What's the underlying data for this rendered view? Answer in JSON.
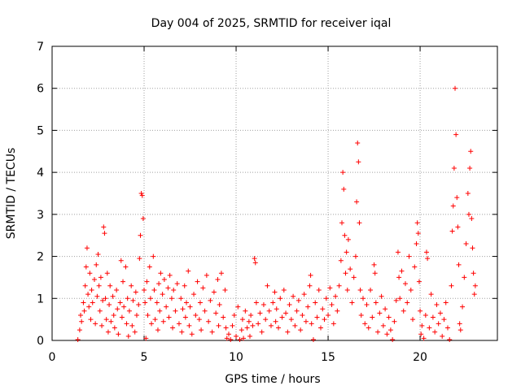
{
  "chart_data": {
    "type": "scatter",
    "title": "Day 004 of 2025, SRMTID for receiver iqal",
    "xlabel": "GPS time / hours",
    "ylabel": "SRMTID / TECUs",
    "xlim": [
      0,
      24.2
    ],
    "ylim": [
      0,
      7
    ],
    "xticks": [
      0,
      5,
      10,
      15,
      20
    ],
    "yticks": [
      0,
      1,
      2,
      3,
      4,
      5,
      6,
      7
    ],
    "grid": true,
    "marker": "+",
    "marker_color": "#ff0000",
    "series": [
      {
        "name": "SRMTID",
        "points": [
          [
            1.4,
            0.02
          ],
          [
            1.5,
            0.25
          ],
          [
            1.55,
            0.6
          ],
          [
            1.6,
            0.45
          ],
          [
            1.7,
            0.9
          ],
          [
            1.75,
            0.7
          ],
          [
            1.8,
            1.3
          ],
          [
            1.85,
            1.75
          ],
          [
            1.9,
            2.2
          ],
          [
            1.95,
            1.1
          ],
          [
            2.0,
            0.8
          ],
          [
            2.05,
            1.6
          ],
          [
            2.1,
            0.5
          ],
          [
            2.15,
            1.2
          ],
          [
            2.2,
            0.9
          ],
          [
            2.3,
            1.45
          ],
          [
            2.35,
            0.4
          ],
          [
            2.4,
            1.8
          ],
          [
            2.45,
            1.05
          ],
          [
            2.5,
            2.05
          ],
          [
            2.55,
            1.3
          ],
          [
            2.6,
            0.7
          ],
          [
            2.65,
            1.5
          ],
          [
            2.7,
            0.35
          ],
          [
            2.75,
            0.95
          ],
          [
            2.8,
            2.7
          ],
          [
            2.85,
            2.55
          ],
          [
            2.9,
            1.0
          ],
          [
            2.95,
            0.5
          ],
          [
            3.0,
            1.6
          ],
          [
            3.05,
            0.2
          ],
          [
            3.1,
            0.85
          ],
          [
            3.15,
            1.3
          ],
          [
            3.2,
            0.45
          ],
          [
            3.3,
            1.05
          ],
          [
            3.35,
            0.6
          ],
          [
            3.4,
            0.3
          ],
          [
            3.5,
            1.2
          ],
          [
            3.55,
            0.75
          ],
          [
            3.6,
            0.15
          ],
          [
            3.7,
            0.9
          ],
          [
            3.75,
            1.9
          ],
          [
            3.8,
            0.55
          ],
          [
            3.85,
            1.4
          ],
          [
            3.9,
            0.8
          ],
          [
            4.0,
            1.75
          ],
          [
            4.05,
            0.4
          ],
          [
            4.1,
            1.0
          ],
          [
            4.15,
            0.1
          ],
          [
            4.2,
            0.7
          ],
          [
            4.3,
            1.3
          ],
          [
            4.35,
            0.35
          ],
          [
            4.4,
            0.95
          ],
          [
            4.5,
            0.2
          ],
          [
            4.55,
            1.15
          ],
          [
            4.6,
            0.6
          ],
          [
            4.7,
            0.85
          ],
          [
            4.75,
            1.95
          ],
          [
            4.8,
            2.5
          ],
          [
            4.85,
            3.5
          ],
          [
            4.9,
            3.45
          ],
          [
            4.95,
            2.9
          ],
          [
            5.0,
            1.2
          ],
          [
            5.05,
            0.9
          ],
          [
            5.1,
            0.05
          ],
          [
            5.15,
            1.4
          ],
          [
            5.2,
            0.6
          ],
          [
            5.3,
            1.75
          ],
          [
            5.35,
            1.0
          ],
          [
            5.4,
            0.4
          ],
          [
            5.5,
            2.0
          ],
          [
            5.55,
            1.2
          ],
          [
            5.6,
            0.5
          ],
          [
            5.7,
            0.9
          ],
          [
            5.75,
            0.25
          ],
          [
            5.8,
            1.35
          ],
          [
            5.85,
            0.7
          ],
          [
            5.9,
            1.6
          ],
          [
            6.0,
            1.1
          ],
          [
            6.05,
            0.45
          ],
          [
            6.1,
            1.45
          ],
          [
            6.2,
            0.8
          ],
          [
            6.3,
            1.25
          ],
          [
            6.35,
            0.55
          ],
          [
            6.4,
            1.55
          ],
          [
            6.5,
            1.0
          ],
          [
            6.55,
            0.3
          ],
          [
            6.6,
            1.2
          ],
          [
            6.7,
            0.7
          ],
          [
            6.8,
            1.35
          ],
          [
            6.9,
            0.4
          ],
          [
            7.0,
            1.0
          ],
          [
            7.05,
            0.2
          ],
          [
            7.1,
            0.75
          ],
          [
            7.2,
            1.3
          ],
          [
            7.25,
            0.55
          ],
          [
            7.3,
            0.9
          ],
          [
            7.4,
            1.65
          ],
          [
            7.45,
            0.35
          ],
          [
            7.5,
            0.8
          ],
          [
            7.6,
            0.15
          ],
          [
            7.7,
            1.1
          ],
          [
            7.8,
            0.6
          ],
          [
            7.9,
            1.4
          ],
          [
            8.0,
            0.5
          ],
          [
            8.05,
            0.9
          ],
          [
            8.1,
            0.25
          ],
          [
            8.2,
            1.25
          ],
          [
            8.3,
            0.7
          ],
          [
            8.4,
            1.55
          ],
          [
            8.5,
            0.45
          ],
          [
            8.6,
            0.95
          ],
          [
            8.7,
            0.2
          ],
          [
            8.8,
            1.15
          ],
          [
            8.9,
            0.65
          ],
          [
            9.0,
            1.45
          ],
          [
            9.05,
            0.35
          ],
          [
            9.1,
            0.85
          ],
          [
            9.2,
            1.6
          ],
          [
            9.3,
            0.55
          ],
          [
            9.4,
            1.2
          ],
          [
            9.45,
            0.3
          ],
          [
            9.5,
            0.05
          ],
          [
            9.6,
            0.15
          ],
          [
            9.7,
            0.02
          ],
          [
            9.8,
            0.35
          ],
          [
            9.9,
            0.6
          ],
          [
            10.0,
            0.1
          ],
          [
            10.1,
            0.8
          ],
          [
            10.2,
            0.02
          ],
          [
            10.3,
            0.25
          ],
          [
            10.35,
            0.5
          ],
          [
            10.4,
            0.05
          ],
          [
            10.5,
            0.7
          ],
          [
            10.6,
            0.3
          ],
          [
            10.7,
            0.45
          ],
          [
            10.75,
            0.1
          ],
          [
            10.8,
            0.6
          ],
          [
            10.9,
            0.35
          ],
          [
            11.0,
            1.95
          ],
          [
            11.05,
            1.85
          ],
          [
            11.1,
            0.9
          ],
          [
            11.2,
            0.4
          ],
          [
            11.3,
            0.65
          ],
          [
            11.4,
            0.2
          ],
          [
            11.5,
            0.85
          ],
          [
            11.6,
            0.5
          ],
          [
            11.7,
            1.3
          ],
          [
            11.8,
            0.7
          ],
          [
            11.9,
            0.35
          ],
          [
            12.0,
            0.9
          ],
          [
            12.1,
            1.15
          ],
          [
            12.15,
            0.45
          ],
          [
            12.2,
            0.75
          ],
          [
            12.3,
            0.3
          ],
          [
            12.4,
            1.0
          ],
          [
            12.5,
            0.55
          ],
          [
            12.6,
            1.2
          ],
          [
            12.7,
            0.65
          ],
          [
            12.8,
            0.2
          ],
          [
            12.9,
            0.85
          ],
          [
            13.0,
            0.5
          ],
          [
            13.1,
            1.05
          ],
          [
            13.2,
            0.35
          ],
          [
            13.3,
            0.7
          ],
          [
            13.4,
            0.95
          ],
          [
            13.5,
            0.25
          ],
          [
            13.6,
            0.6
          ],
          [
            13.7,
            1.1
          ],
          [
            13.8,
            0.45
          ],
          [
            13.9,
            0.8
          ],
          [
            14.0,
            1.3
          ],
          [
            14.05,
            1.55
          ],
          [
            14.1,
            0.4
          ],
          [
            14.2,
            0.02
          ],
          [
            14.3,
            0.9
          ],
          [
            14.4,
            0.55
          ],
          [
            14.5,
            1.2
          ],
          [
            14.6,
            0.3
          ],
          [
            14.7,
            0.75
          ],
          [
            14.8,
            0.5
          ],
          [
            14.9,
            1.0
          ],
          [
            15.0,
            0.6
          ],
          [
            15.1,
            1.25
          ],
          [
            15.2,
            0.85
          ],
          [
            15.3,
            0.4
          ],
          [
            15.4,
            1.05
          ],
          [
            15.5,
            0.7
          ],
          [
            15.6,
            1.3
          ],
          [
            15.7,
            1.9
          ],
          [
            15.75,
            2.8
          ],
          [
            15.8,
            4.0
          ],
          [
            15.85,
            3.6
          ],
          [
            15.9,
            2.5
          ],
          [
            15.95,
            1.6
          ],
          [
            16.0,
            2.1
          ],
          [
            16.05,
            1.2
          ],
          [
            16.1,
            2.4
          ],
          [
            16.2,
            1.7
          ],
          [
            16.3,
            0.9
          ],
          [
            16.4,
            1.5
          ],
          [
            16.5,
            2.0
          ],
          [
            16.55,
            3.3
          ],
          [
            16.6,
            4.7
          ],
          [
            16.65,
            4.25
          ],
          [
            16.7,
            2.8
          ],
          [
            16.75,
            1.2
          ],
          [
            16.8,
            0.6
          ],
          [
            16.9,
            1.0
          ],
          [
            17.0,
            0.4
          ],
          [
            17.1,
            0.85
          ],
          [
            17.2,
            0.3
          ],
          [
            17.3,
            1.2
          ],
          [
            17.4,
            0.55
          ],
          [
            17.5,
            1.8
          ],
          [
            17.55,
            1.6
          ],
          [
            17.6,
            0.9
          ],
          [
            17.7,
            0.2
          ],
          [
            17.8,
            0.65
          ],
          [
            17.9,
            1.05
          ],
          [
            18.0,
            0.35
          ],
          [
            18.1,
            0.75
          ],
          [
            18.2,
            0.15
          ],
          [
            18.3,
            0.55
          ],
          [
            18.4,
            0.25
          ],
          [
            18.5,
            0.02
          ],
          [
            18.6,
            0.45
          ],
          [
            18.7,
            0.95
          ],
          [
            18.8,
            2.1
          ],
          [
            18.85,
            1.5
          ],
          [
            18.9,
            1.0
          ],
          [
            19.0,
            1.65
          ],
          [
            19.1,
            0.7
          ],
          [
            19.2,
            1.35
          ],
          [
            19.3,
            0.9
          ],
          [
            19.4,
            2.0
          ],
          [
            19.5,
            1.2
          ],
          [
            19.6,
            0.5
          ],
          [
            19.7,
            1.75
          ],
          [
            19.8,
            2.3
          ],
          [
            19.85,
            2.8
          ],
          [
            19.9,
            2.55
          ],
          [
            19.95,
            1.4
          ],
          [
            20.0,
            0.7
          ],
          [
            20.05,
            0.15
          ],
          [
            20.1,
            0.35
          ],
          [
            20.2,
            0.05
          ],
          [
            20.3,
            0.6
          ],
          [
            20.35,
            2.1
          ],
          [
            20.4,
            1.95
          ],
          [
            20.5,
            0.3
          ],
          [
            20.6,
            1.1
          ],
          [
            20.7,
            0.55
          ],
          [
            20.8,
            0.2
          ],
          [
            20.9,
            0.85
          ],
          [
            21.0,
            0.4
          ],
          [
            21.1,
            0.65
          ],
          [
            21.2,
            0.1
          ],
          [
            21.3,
            0.5
          ],
          [
            21.4,
            0.9
          ],
          [
            21.5,
            0.3
          ],
          [
            21.6,
            0.02
          ],
          [
            21.7,
            1.3
          ],
          [
            21.75,
            2.6
          ],
          [
            21.8,
            3.2
          ],
          [
            21.85,
            4.1
          ],
          [
            21.9,
            6.0
          ],
          [
            21.95,
            4.9
          ],
          [
            22.0,
            3.4
          ],
          [
            22.05,
            2.7
          ],
          [
            22.1,
            1.8
          ],
          [
            22.15,
            0.4
          ],
          [
            22.2,
            0.25
          ],
          [
            22.3,
            0.8
          ],
          [
            22.4,
            1.5
          ],
          [
            22.5,
            2.3
          ],
          [
            22.6,
            3.5
          ],
          [
            22.65,
            3.0
          ],
          [
            22.7,
            4.1
          ],
          [
            22.75,
            4.5
          ],
          [
            22.8,
            2.9
          ],
          [
            22.85,
            2.2
          ],
          [
            22.9,
            1.6
          ],
          [
            22.95,
            1.1
          ],
          [
            23.0,
            1.3
          ]
        ]
      }
    ]
  }
}
